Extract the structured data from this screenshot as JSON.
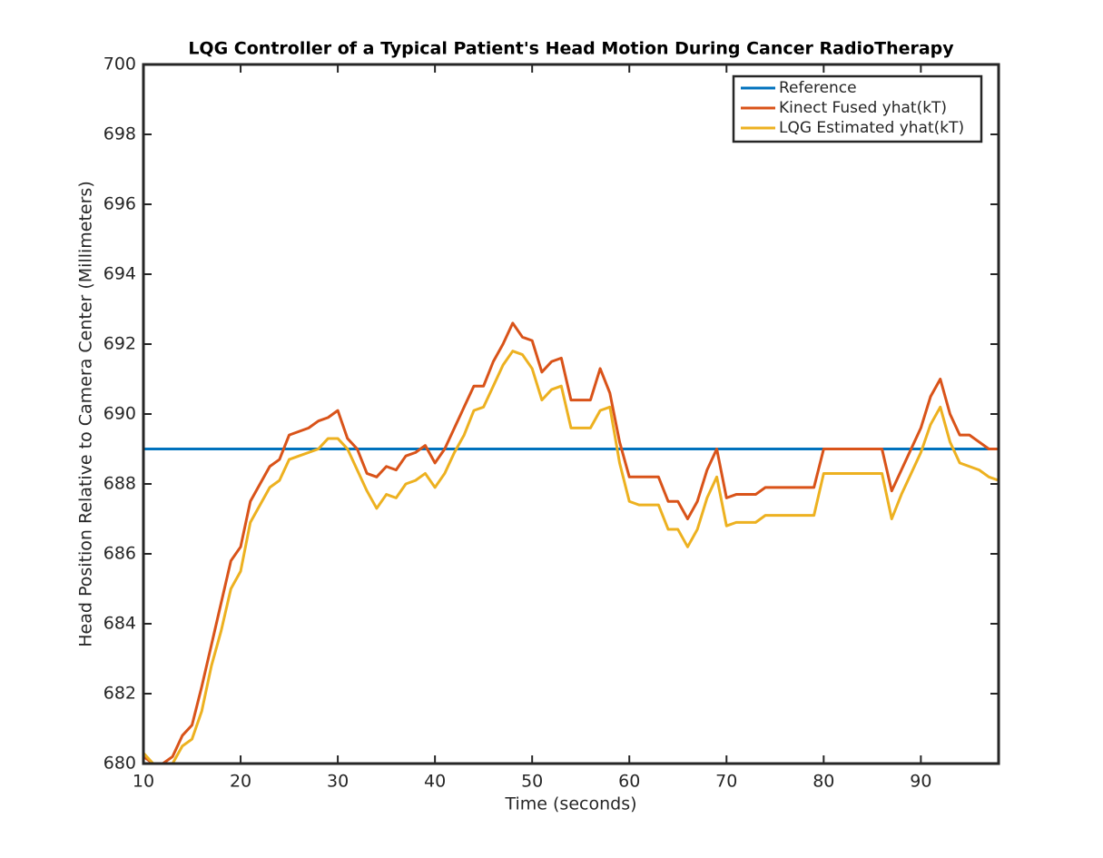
{
  "chart_data": {
    "type": "line",
    "title": "LQG Controller of a Typical Patient's Head Motion During Cancer RadioTherapy",
    "xlabel": "Time (seconds)",
    "ylabel": "Head Position Relative to Camera Center (Millimeters)",
    "x": [
      10,
      11,
      12,
      13,
      14,
      15,
      16,
      17,
      18,
      19,
      20,
      21,
      22,
      23,
      24,
      25,
      26,
      27,
      28,
      29,
      30,
      31,
      32,
      33,
      34,
      35,
      36,
      37,
      38,
      39,
      40,
      41,
      42,
      43,
      44,
      45,
      46,
      47,
      48,
      49,
      50,
      51,
      52,
      53,
      54,
      55,
      56,
      57,
      58,
      59,
      60,
      61,
      62,
      63,
      64,
      65,
      66,
      67,
      68,
      69,
      70,
      71,
      72,
      73,
      74,
      75,
      76,
      77,
      78,
      79,
      80,
      81,
      82,
      83,
      84,
      85,
      86,
      87,
      88,
      89,
      90,
      91,
      92,
      93,
      94,
      95,
      96,
      97,
      98
    ],
    "series": [
      {
        "name": "Reference",
        "color": "#0072BD",
        "values": [
          689,
          689,
          689,
          689,
          689,
          689,
          689,
          689,
          689,
          689,
          689,
          689,
          689,
          689,
          689,
          689,
          689,
          689,
          689,
          689,
          689,
          689,
          689,
          689,
          689,
          689,
          689,
          689,
          689,
          689,
          689,
          689,
          689,
          689,
          689,
          689,
          689,
          689,
          689,
          689,
          689,
          689,
          689,
          689,
          689,
          689,
          689,
          689,
          689,
          689,
          689,
          689,
          689,
          689,
          689,
          689,
          689,
          689,
          689,
          689,
          689,
          689,
          689,
          689,
          689,
          689,
          689,
          689,
          689,
          689,
          689,
          689,
          689,
          689,
          689,
          689,
          689,
          689,
          689,
          689,
          689,
          689,
          689,
          689,
          689,
          689,
          689,
          689,
          689
        ]
      },
      {
        "name": "Kinect Fused yhat(kT)",
        "color": "#D95319",
        "values": [
          680.2,
          680,
          680,
          680.2,
          680.8,
          681.1,
          682.2,
          683.4,
          684.6,
          685.8,
          686.2,
          687.5,
          688.0,
          688.5,
          688.7,
          689.4,
          689.5,
          689.6,
          689.8,
          689.9,
          690.1,
          689.3,
          689.0,
          688.3,
          688.2,
          688.5,
          688.4,
          688.8,
          688.9,
          689.1,
          688.6,
          689.0,
          689.6,
          690.2,
          690.8,
          690.8,
          691.5,
          692.0,
          692.6,
          692.2,
          692.1,
          691.2,
          691.5,
          691.6,
          690.4,
          690.4,
          690.4,
          691.3,
          690.6,
          689.2,
          688.2,
          688.2,
          688.2,
          688.2,
          687.5,
          687.5,
          687.0,
          687.5,
          688.4,
          689.0,
          687.6,
          687.7,
          687.7,
          687.7,
          687.9,
          687.9,
          687.9,
          687.9,
          687.9,
          687.9,
          689.0,
          689.0,
          689.0,
          689.0,
          689.0,
          689.0,
          689.0,
          687.8,
          688.4,
          689.0,
          689.6,
          690.5,
          691.0,
          690.0,
          689.4,
          689.4,
          689.2,
          689.0,
          689.0
        ]
      },
      {
        "name": "LQG Estimated yhat(kT)",
        "color": "#EDB120",
        "values": [
          680.3,
          680,
          680,
          680,
          680.5,
          680.7,
          681.5,
          682.8,
          683.8,
          685.0,
          685.5,
          686.9,
          687.4,
          687.9,
          688.1,
          688.7,
          688.8,
          688.9,
          689.0,
          689.3,
          689.3,
          689.0,
          688.4,
          687.8,
          687.3,
          687.7,
          687.6,
          688.0,
          688.1,
          688.3,
          687.9,
          688.3,
          688.9,
          689.4,
          690.1,
          690.2,
          690.8,
          691.4,
          691.8,
          691.7,
          691.3,
          690.4,
          690.7,
          690.8,
          689.6,
          689.6,
          689.6,
          690.1,
          690.2,
          688.6,
          687.5,
          687.4,
          687.4,
          687.4,
          686.7,
          686.7,
          686.2,
          686.7,
          687.6,
          688.2,
          686.8,
          686.9,
          686.9,
          686.9,
          687.1,
          687.1,
          687.1,
          687.1,
          687.1,
          687.1,
          688.3,
          688.3,
          688.3,
          688.3,
          688.3,
          688.3,
          688.3,
          687.0,
          687.7,
          688.3,
          688.9,
          689.7,
          690.2,
          689.2,
          688.6,
          688.5,
          688.4,
          688.2,
          688.1
        ]
      }
    ],
    "xlim": [
      10,
      98
    ],
    "xticks": [
      10,
      20,
      30,
      40,
      50,
      60,
      70,
      80,
      90
    ],
    "ylim": [
      680,
      700
    ],
    "yticks": [
      680,
      682,
      684,
      686,
      688,
      690,
      692,
      694,
      696,
      698,
      700
    ],
    "legend": "northeast",
    "grid": false
  }
}
